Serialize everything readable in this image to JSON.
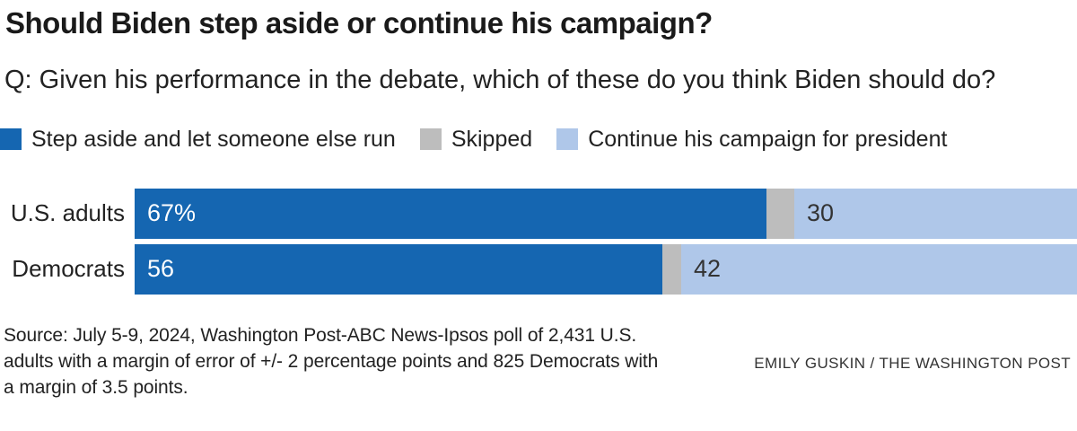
{
  "chart": {
    "title": "Should Biden step aside or continue his campaign?",
    "question": "Q: Given his performance in the debate, which of these do you think Biden should do?",
    "source_lines": [
      "Source: July 5-9, 2024, Washington Post-ABC News-Ipsos poll of 2,431 U.S.",
      "adults with a margin of error of +/- 2 percentage points and 825 Democrats with",
      "a margin of 3.5 points."
    ],
    "credit": "EMILY GUSKIN / THE WASHINGTON POST"
  },
  "chart_data": {
    "type": "bar",
    "orientation": "horizontal",
    "stacked": true,
    "xlim": [
      0,
      100
    ],
    "grid": false,
    "legend_position": "top",
    "categories": [
      "U.S. adults",
      "Democrats"
    ],
    "series": [
      {
        "name": "Step aside and let someone else run",
        "color": "#1566b1",
        "values": [
          67,
          56
        ],
        "value_labels": [
          "67%",
          "56"
        ],
        "label_style": "light"
      },
      {
        "name": "Skipped",
        "color": "#bdbdbd",
        "values": [
          3,
          2
        ],
        "value_labels": [
          "",
          ""
        ],
        "label_style": "dark"
      },
      {
        "name": "Continue his campaign for president",
        "color": "#afc7e9",
        "values": [
          30,
          42
        ],
        "value_labels": [
          "30",
          "42"
        ],
        "label_style": "dark"
      }
    ]
  }
}
